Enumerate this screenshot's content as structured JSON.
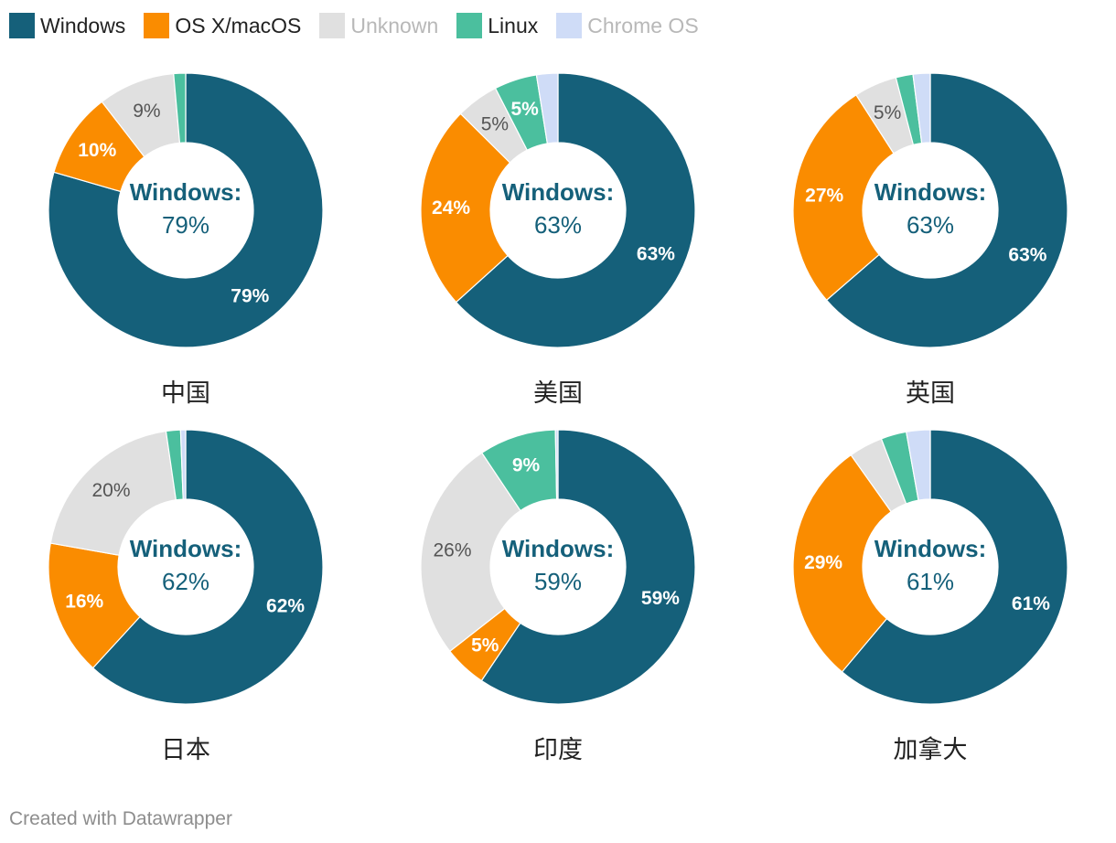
{
  "legend": [
    {
      "label": "Windows",
      "color": "#15607a",
      "muted": false
    },
    {
      "label": "OS X/macOS",
      "color": "#fa8c00",
      "muted": false
    },
    {
      "label": "Unknown",
      "color": "#e0e0e0",
      "muted": true
    },
    {
      "label": "Linux",
      "color": "#4bbf9e",
      "muted": false
    },
    {
      "label": "Chrome OS",
      "color": "#cfdcf7",
      "muted": true
    }
  ],
  "center_title": "Windows:",
  "footer": "Created with Datawrapper",
  "chart_data": [
    {
      "type": "pie",
      "name": "中国",
      "categories": [
        "Windows",
        "OS X/macOS",
        "Unknown",
        "Linux",
        "Chrome OS"
      ],
      "values": [
        79,
        10,
        9,
        1.4,
        0
      ],
      "labels": [
        "79%",
        "10%",
        "9%",
        "",
        ""
      ],
      "center_value": "79%"
    },
    {
      "type": "pie",
      "name": "美国",
      "categories": [
        "Windows",
        "OS X/macOS",
        "Unknown",
        "Linux",
        "Chrome OS"
      ],
      "values": [
        63,
        24,
        5,
        5,
        2.5
      ],
      "labels": [
        "63%",
        "24%",
        "5%",
        "5%",
        ""
      ],
      "center_value": "63%"
    },
    {
      "type": "pie",
      "name": "英国",
      "categories": [
        "Windows",
        "OS X/macOS",
        "Unknown",
        "Linux",
        "Chrome OS"
      ],
      "values": [
        63,
        27,
        5,
        2,
        2
      ],
      "labels": [
        "63%",
        "27%",
        "5%",
        "",
        ""
      ],
      "center_value": "63%"
    },
    {
      "type": "pie",
      "name": "日本",
      "categories": [
        "Windows",
        "OS X/macOS",
        "Unknown",
        "Linux",
        "Chrome OS"
      ],
      "values": [
        62,
        16,
        20,
        1.7,
        0.6
      ],
      "labels": [
        "62%",
        "16%",
        "20%",
        "",
        ""
      ],
      "center_value": "62%"
    },
    {
      "type": "pie",
      "name": "印度",
      "categories": [
        "Windows",
        "OS X/macOS",
        "Unknown",
        "Linux",
        "Chrome OS"
      ],
      "values": [
        59,
        5,
        26,
        9,
        0.3
      ],
      "labels": [
        "59%",
        "5%",
        "26%",
        "9%",
        ""
      ],
      "center_value": "59%"
    },
    {
      "type": "pie",
      "name": "加拿大",
      "categories": [
        "Windows",
        "OS X/macOS",
        "Unknown",
        "Linux",
        "Chrome OS"
      ],
      "values": [
        61,
        29,
        4,
        3,
        2.8
      ],
      "labels": [
        "61%",
        "29%",
        "",
        "",
        ""
      ],
      "center_value": "61%"
    }
  ]
}
